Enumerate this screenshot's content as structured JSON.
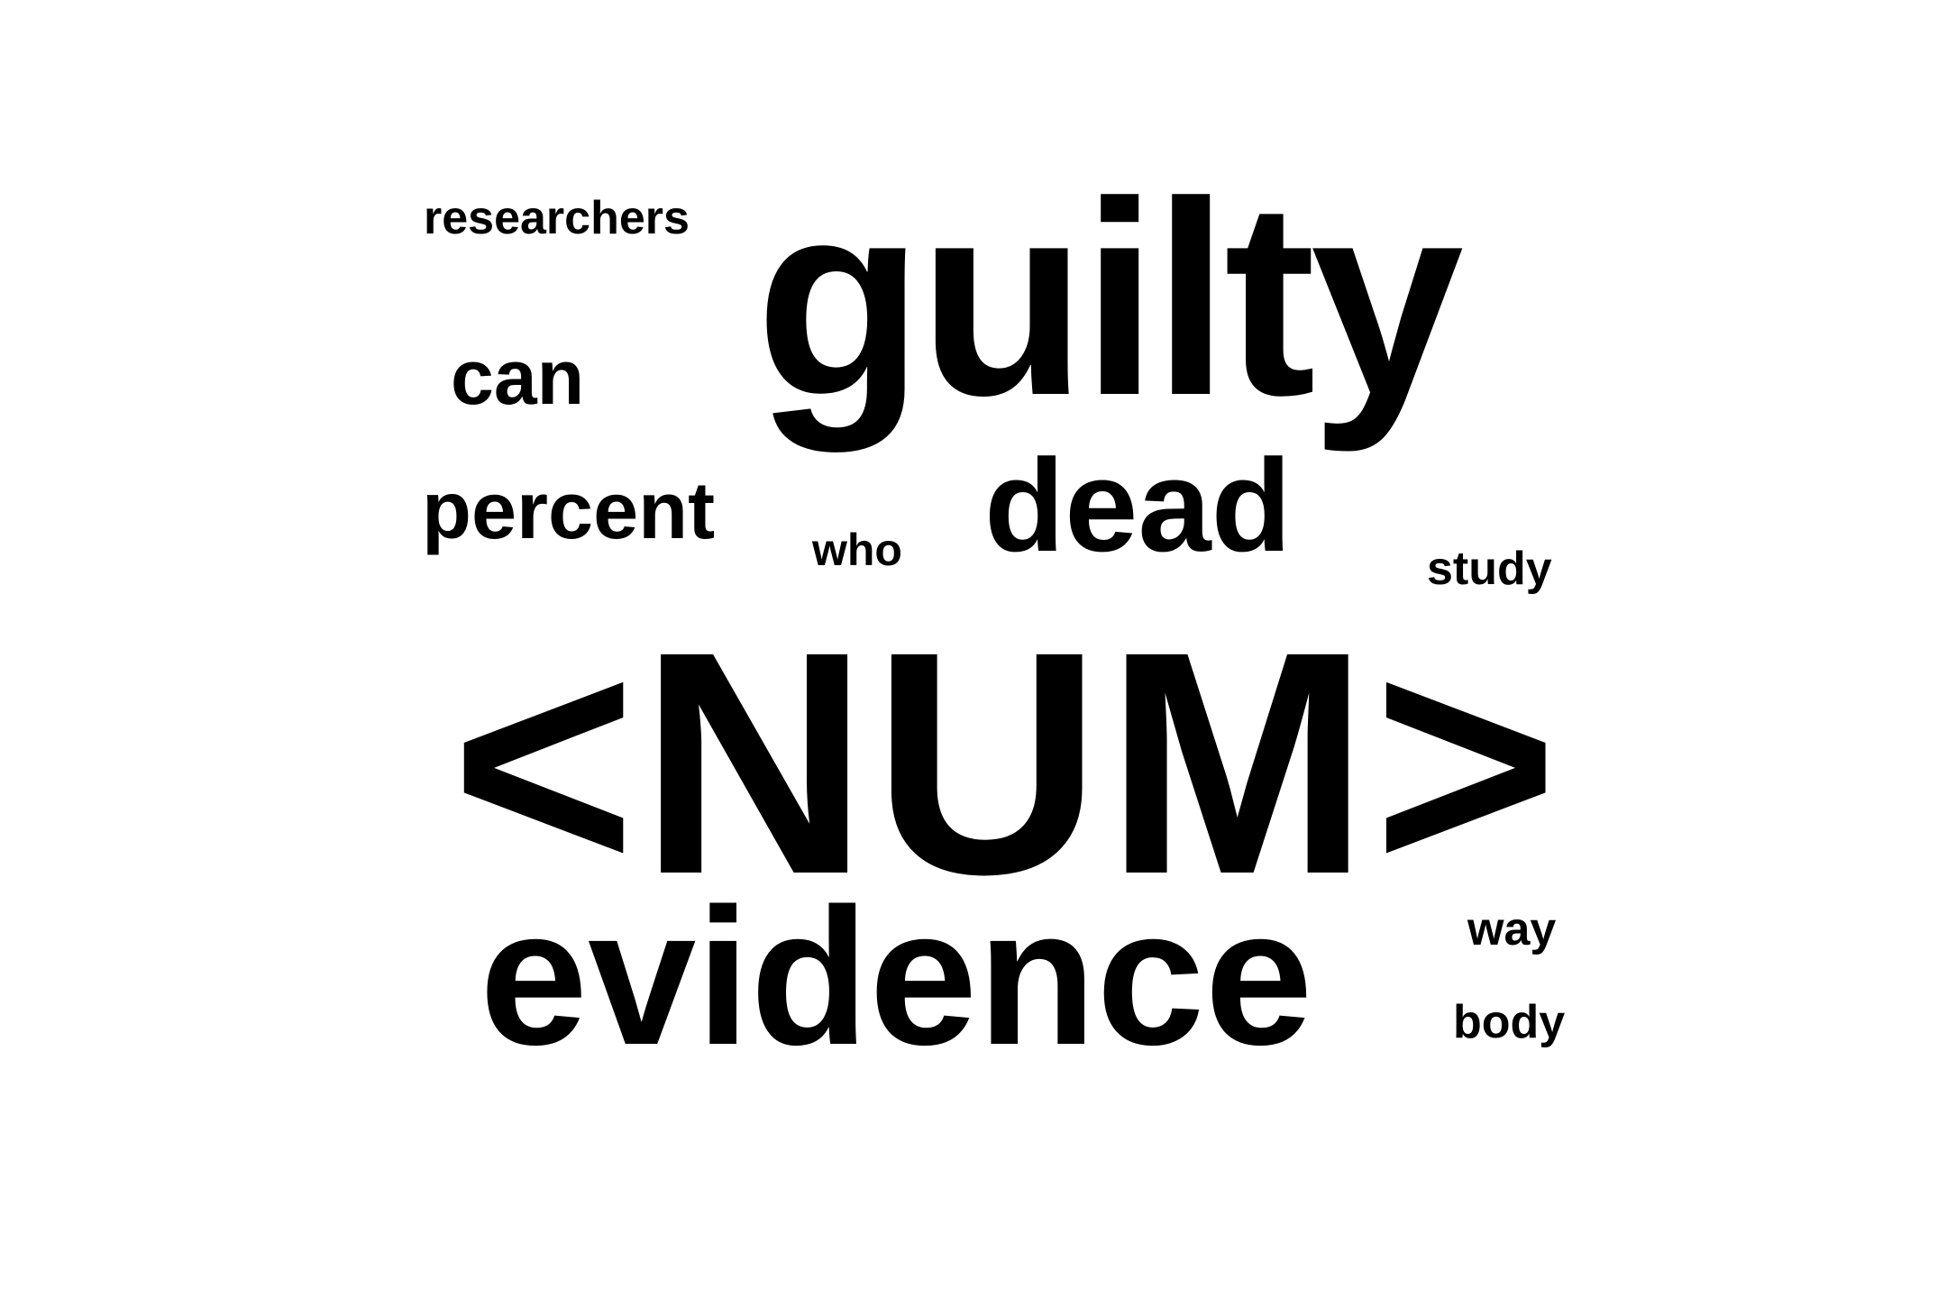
{
  "word_cloud": {
    "words": [
      {
        "text": "<NUM>",
        "rank": 1
      },
      {
        "text": "guilty",
        "rank": 2
      },
      {
        "text": "evidence",
        "rank": 3
      },
      {
        "text": "dead",
        "rank": 4
      },
      {
        "text": "percent",
        "rank": 5
      },
      {
        "text": "can",
        "rank": 6
      },
      {
        "text": "researchers",
        "rank": 7
      },
      {
        "text": "study",
        "rank": 8
      },
      {
        "text": "who",
        "rank": 9
      },
      {
        "text": "way",
        "rank": 10
      },
      {
        "text": "body",
        "rank": 11
      }
    ],
    "text_color": "#000000",
    "background_color": "#ffffff"
  }
}
